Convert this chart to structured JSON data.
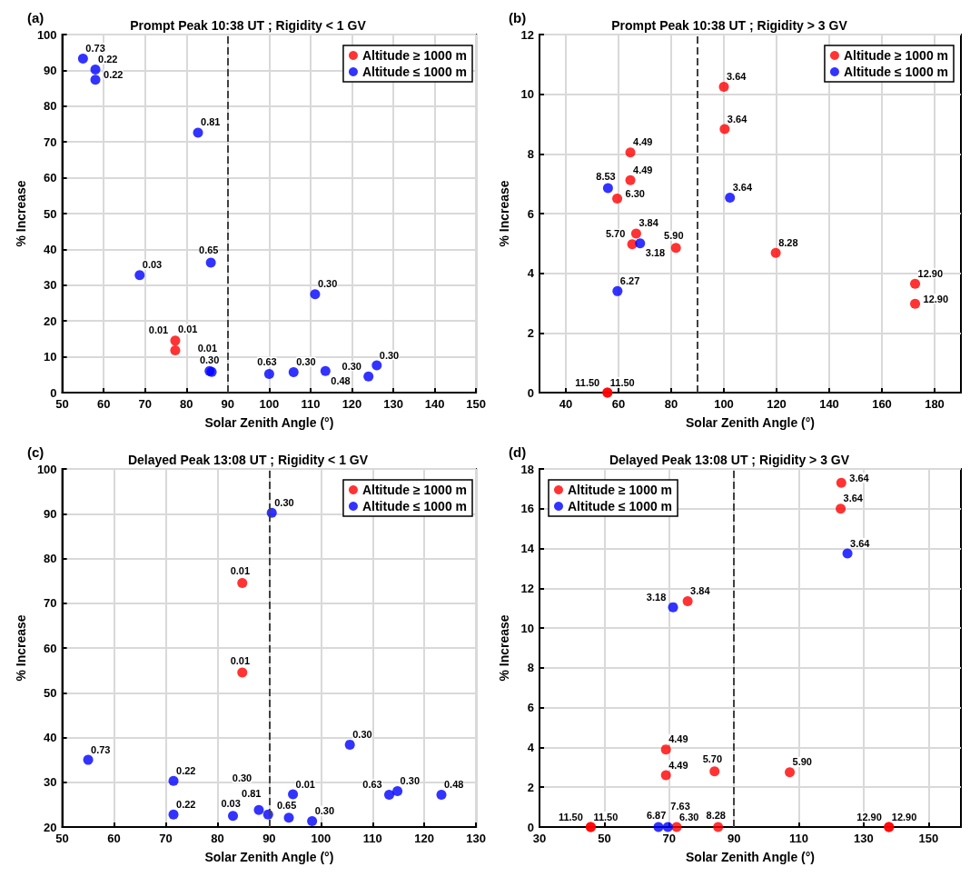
{
  "chart_data": [
    {
      "type": "scatter",
      "title": "Prompt Peak 10:38 UT ; Rigidity < 1 GV",
      "xlabel": "Solar Zenith Angle (°)",
      "ylabel": "% Increase",
      "xlim": [
        50,
        150
      ],
      "ylim": [
        0,
        100
      ],
      "xticks": [
        50,
        60,
        70,
        80,
        90,
        100,
        110,
        120,
        130,
        140,
        150
      ],
      "yticks": [
        0,
        10,
        20,
        30,
        40,
        50,
        60,
        70,
        80,
        90,
        100
      ],
      "grid": true,
      "legend": "top right",
      "marker": "circle",
      "ref_lines": [
        {
          "axis": "x",
          "value": 90,
          "label": null,
          "color": "#404040",
          "line_style": "dashed"
        }
      ],
      "annotations": [
        "(a)",
        {
          "text": "0.01",
          "x": 77.3,
          "y": 14.5
        },
        {
          "text": "0.01",
          "x": 77.3,
          "y": 11.8
        },
        {
          "text": "0.73",
          "x": 55,
          "y": 93.3
        },
        {
          "text": "0.22",
          "x": 58,
          "y": 90.2
        },
        {
          "text": "0.22",
          "x": 58,
          "y": 87.4
        },
        {
          "text": "0.81",
          "x": 82.8,
          "y": 72.6
        },
        {
          "text": "0.03",
          "x": 68.7,
          "y": 32.8
        },
        {
          "text": "0.65",
          "x": 85.9,
          "y": 36.3
        },
        {
          "text": "0.30",
          "x": 111.1,
          "y": 27.5
        },
        {
          "text": "0.01",
          "x": 85.6,
          "y": 6.0
        },
        {
          "text": "0.30",
          "x": 86.1,
          "y": 5.8
        },
        {
          "text": "0.63",
          "x": 100,
          "y": 5.2
        },
        {
          "text": "0.30",
          "x": 105.9,
          "y": 5.7
        },
        {
          "text": "0.48",
          "x": 113.6,
          "y": 6.0
        },
        {
          "text": "0.30",
          "x": 126,
          "y": 7.6
        },
        {
          "text": "0.30",
          "x": 124,
          "y": 4.5
        }
      ],
      "series": [
        {
          "name": "Altitude ≥ 1000 m",
          "color": "#ff0000",
          "x": [
            77.3,
            77.3
          ],
          "values": [
            14.5,
            11.8
          ]
        },
        {
          "name": "Altitude ≤ 1000 m",
          "color": "#0000ff",
          "x": [
            55,
            58,
            58,
            82.8,
            68.7,
            85.9,
            111.1,
            85.6,
            86.1,
            100,
            105.9,
            113.6,
            126,
            124
          ],
          "values": [
            93.3,
            90.2,
            87.4,
            72.6,
            32.8,
            36.3,
            27.5,
            6.0,
            5.8,
            5.2,
            5.7,
            6.0,
            7.6,
            4.5
          ]
        }
      ]
    },
    {
      "type": "scatter",
      "title": "Prompt Peak 10:38 UT ; Rigidity > 3 GV",
      "xlabel": "Solar Zenith Angle (°)",
      "ylabel": "% Increase",
      "xlim": [
        30,
        190
      ],
      "ylim": [
        0,
        12
      ],
      "xticks": [
        40,
        60,
        80,
        100,
        120,
        140,
        160,
        180
      ],
      "yticks": [
        0,
        2,
        4,
        6,
        8,
        10,
        12
      ],
      "grid": true,
      "legend": "top right",
      "marker": "circle",
      "ref_lines": [
        {
          "axis": "x",
          "value": 90,
          "label": null,
          "color": "#404040",
          "line_style": "dashed"
        }
      ],
      "annotations": [
        "(b)",
        {
          "text": "3.64",
          "x": 100,
          "y": 10.25
        },
        {
          "text": "3.64",
          "x": 100.3,
          "y": 8.83
        },
        {
          "text": "4.49",
          "x": 64.5,
          "y": 8.05
        },
        {
          "text": "4.49",
          "x": 64.5,
          "y": 7.12
        },
        {
          "text": "6.30",
          "x": 59.5,
          "y": 6.5
        },
        {
          "text": "3.84",
          "x": 66.7,
          "y": 5.33
        },
        {
          "text": "5.70",
          "x": 65.2,
          "y": 4.97
        },
        {
          "text": "5.90",
          "x": 81.8,
          "y": 4.85
        },
        {
          "text": "8.28",
          "x": 119.7,
          "y": 4.68
        },
        {
          "text": "12.90",
          "x": 172.6,
          "y": 3.65
        },
        {
          "text": "12.90",
          "x": 172.6,
          "y": 2.98
        },
        {
          "text": "11.50",
          "x": 55.8,
          "y": 0
        },
        {
          "text": "11.50",
          "x": 55.8,
          "y": 0
        },
        {
          "text": "8.53",
          "x": 56,
          "y": 6.85
        },
        {
          "text": "3.64",
          "x": 102.3,
          "y": 6.53
        },
        {
          "text": "3.18",
          "x": 68.2,
          "y": 5.0
        },
        {
          "text": "6.27",
          "x": 59.6,
          "y": 3.4
        }
      ],
      "series": [
        {
          "name": "Altitude ≥ 1000 m",
          "color": "#ff0000",
          "x": [
            100,
            100.3,
            64.5,
            64.5,
            59.5,
            66.7,
            65.2,
            81.8,
            119.7,
            172.6,
            172.6,
            55.8,
            55.8
          ],
          "values": [
            10.25,
            8.83,
            8.05,
            7.12,
            6.5,
            5.33,
            4.97,
            4.85,
            4.68,
            3.65,
            2.98,
            0,
            0
          ]
        },
        {
          "name": "Altitude ≤ 1000 m",
          "color": "#0000ff",
          "x": [
            56,
            102.3,
            68.2,
            59.6
          ],
          "values": [
            6.85,
            6.53,
            5.0,
            3.4
          ]
        }
      ]
    },
    {
      "type": "scatter",
      "title": "Delayed Peak 13:08 UT ; Rigidity < 1 GV",
      "xlabel": "Solar Zenith Angle (°)",
      "ylabel": "% Increase",
      "xlim": [
        50,
        130
      ],
      "ylim": [
        20,
        100
      ],
      "xticks": [
        50,
        60,
        70,
        80,
        90,
        100,
        110,
        120,
        130
      ],
      "yticks": [
        20,
        30,
        40,
        50,
        60,
        70,
        80,
        90,
        100
      ],
      "grid": true,
      "legend": "top right",
      "marker": "circle",
      "ref_lines": [
        {
          "axis": "x",
          "value": 90,
          "label": null,
          "color": "#404040",
          "line_style": "dashed"
        }
      ],
      "annotations": [
        "(c)",
        {
          "text": "0.01",
          "x": 84.8,
          "y": 74.5
        },
        {
          "text": "0.01",
          "x": 84.8,
          "y": 54.5
        },
        {
          "text": "0.30",
          "x": 90.5,
          "y": 90.2
        },
        {
          "text": "0.73",
          "x": 55,
          "y": 35
        },
        {
          "text": "0.22",
          "x": 71.5,
          "y": 30.3
        },
        {
          "text": "0.22",
          "x": 71.5,
          "y": 22.8
        },
        {
          "text": "0.30",
          "x": 105.6,
          "y": 38.4
        },
        {
          "text": "0.03",
          "x": 83,
          "y": 22.5
        },
        {
          "text": "0.30",
          "x": 88,
          "y": 23.8
        },
        {
          "text": "0.81",
          "x": 89.8,
          "y": 22.8
        },
        {
          "text": "0.65",
          "x": 93.8,
          "y": 22.1
        },
        {
          "text": "0.30",
          "x": 98.3,
          "y": 21.3
        },
        {
          "text": "0.01",
          "x": 94.6,
          "y": 27.3
        },
        {
          "text": "0.63",
          "x": 113.2,
          "y": 27.2
        },
        {
          "text": "0.30",
          "x": 114.8,
          "y": 28
        },
        {
          "text": "0.48",
          "x": 123.3,
          "y": 27.2
        }
      ],
      "series": [
        {
          "name": "Altitude ≥ 1000 m",
          "color": "#ff0000",
          "x": [
            84.8,
            84.8
          ],
          "values": [
            74.5,
            54.5
          ]
        },
        {
          "name": "Altitude ≤ 1000 m",
          "color": "#0000ff",
          "x": [
            90.5,
            55,
            71.5,
            71.5,
            105.6,
            83,
            88,
            89.8,
            93.8,
            98.3,
            94.6,
            113.2,
            114.8,
            123.3
          ],
          "values": [
            90.2,
            35,
            30.3,
            22.8,
            38.4,
            22.5,
            23.8,
            22.8,
            22.1,
            21.3,
            27.3,
            27.2,
            28,
            27.2
          ]
        }
      ]
    },
    {
      "type": "scatter",
      "title": "Delayed Peak 13:08 UT ; Rigidity > 3 GV",
      "xlabel": "Solar Zenith Angle (°)",
      "ylabel": "% Increase",
      "xlim": [
        30,
        160
      ],
      "ylim": [
        0,
        18
      ],
      "xticks": [
        30,
        50,
        70,
        90,
        110,
        130,
        150
      ],
      "yticks": [
        0,
        2,
        4,
        6,
        8,
        10,
        12,
        14,
        16,
        18
      ],
      "grid": true,
      "legend": "top left",
      "marker": "circle",
      "ref_lines": [
        {
          "axis": "x",
          "value": 90,
          "label": null,
          "color": "#404040",
          "line_style": "dashed"
        }
      ],
      "annotations": [
        "(d)",
        {
          "text": "3.64",
          "x": 123.1,
          "y": 17.3
        },
        {
          "text": "3.64",
          "x": 122.9,
          "y": 16.0
        },
        {
          "text": "3.84",
          "x": 75.7,
          "y": 11.35
        },
        {
          "text": "4.49",
          "x": 69,
          "y": 3.9
        },
        {
          "text": "4.49",
          "x": 69,
          "y": 2.6
        },
        {
          "text": "5.70",
          "x": 84,
          "y": 2.8
        },
        {
          "text": "5.90",
          "x": 107.2,
          "y": 2.75
        },
        {
          "text": "11.50",
          "x": 45.8,
          "y": 0
        },
        {
          "text": "11.50",
          "x": 45.8,
          "y": 0
        },
        {
          "text": "6.30",
          "x": 72.3,
          "y": 0
        },
        {
          "text": "8.28",
          "x": 85.1,
          "y": 0
        },
        {
          "text": "12.90",
          "x": 137.8,
          "y": 0
        },
        {
          "text": "12.90",
          "x": 137.8,
          "y": 0
        },
        {
          "text": "3.64",
          "x": 125,
          "y": 13.75
        },
        {
          "text": "3.18",
          "x": 71.2,
          "y": 11.05
        },
        {
          "text": "6.87",
          "x": 66.7,
          "y": 0
        },
        {
          "text": "7.63",
          "x": 69.6,
          "y": 0
        }
      ],
      "series": [
        {
          "name": "Altitude ≥ 1000 m",
          "color": "#ff0000",
          "x": [
            123.1,
            122.9,
            75.7,
            69,
            69,
            84,
            107.2,
            45.8,
            45.8,
            72.3,
            85.1,
            137.8,
            137.8
          ],
          "values": [
            17.3,
            16.0,
            11.35,
            3.9,
            2.6,
            2.8,
            2.75,
            0,
            0,
            0,
            0,
            0,
            0
          ]
        },
        {
          "name": "Altitude ≤ 1000 m",
          "color": "#0000ff",
          "x": [
            125,
            71.2,
            66.7,
            69.6
          ],
          "values": [
            13.75,
            11.05,
            0,
            0
          ]
        }
      ]
    }
  ]
}
